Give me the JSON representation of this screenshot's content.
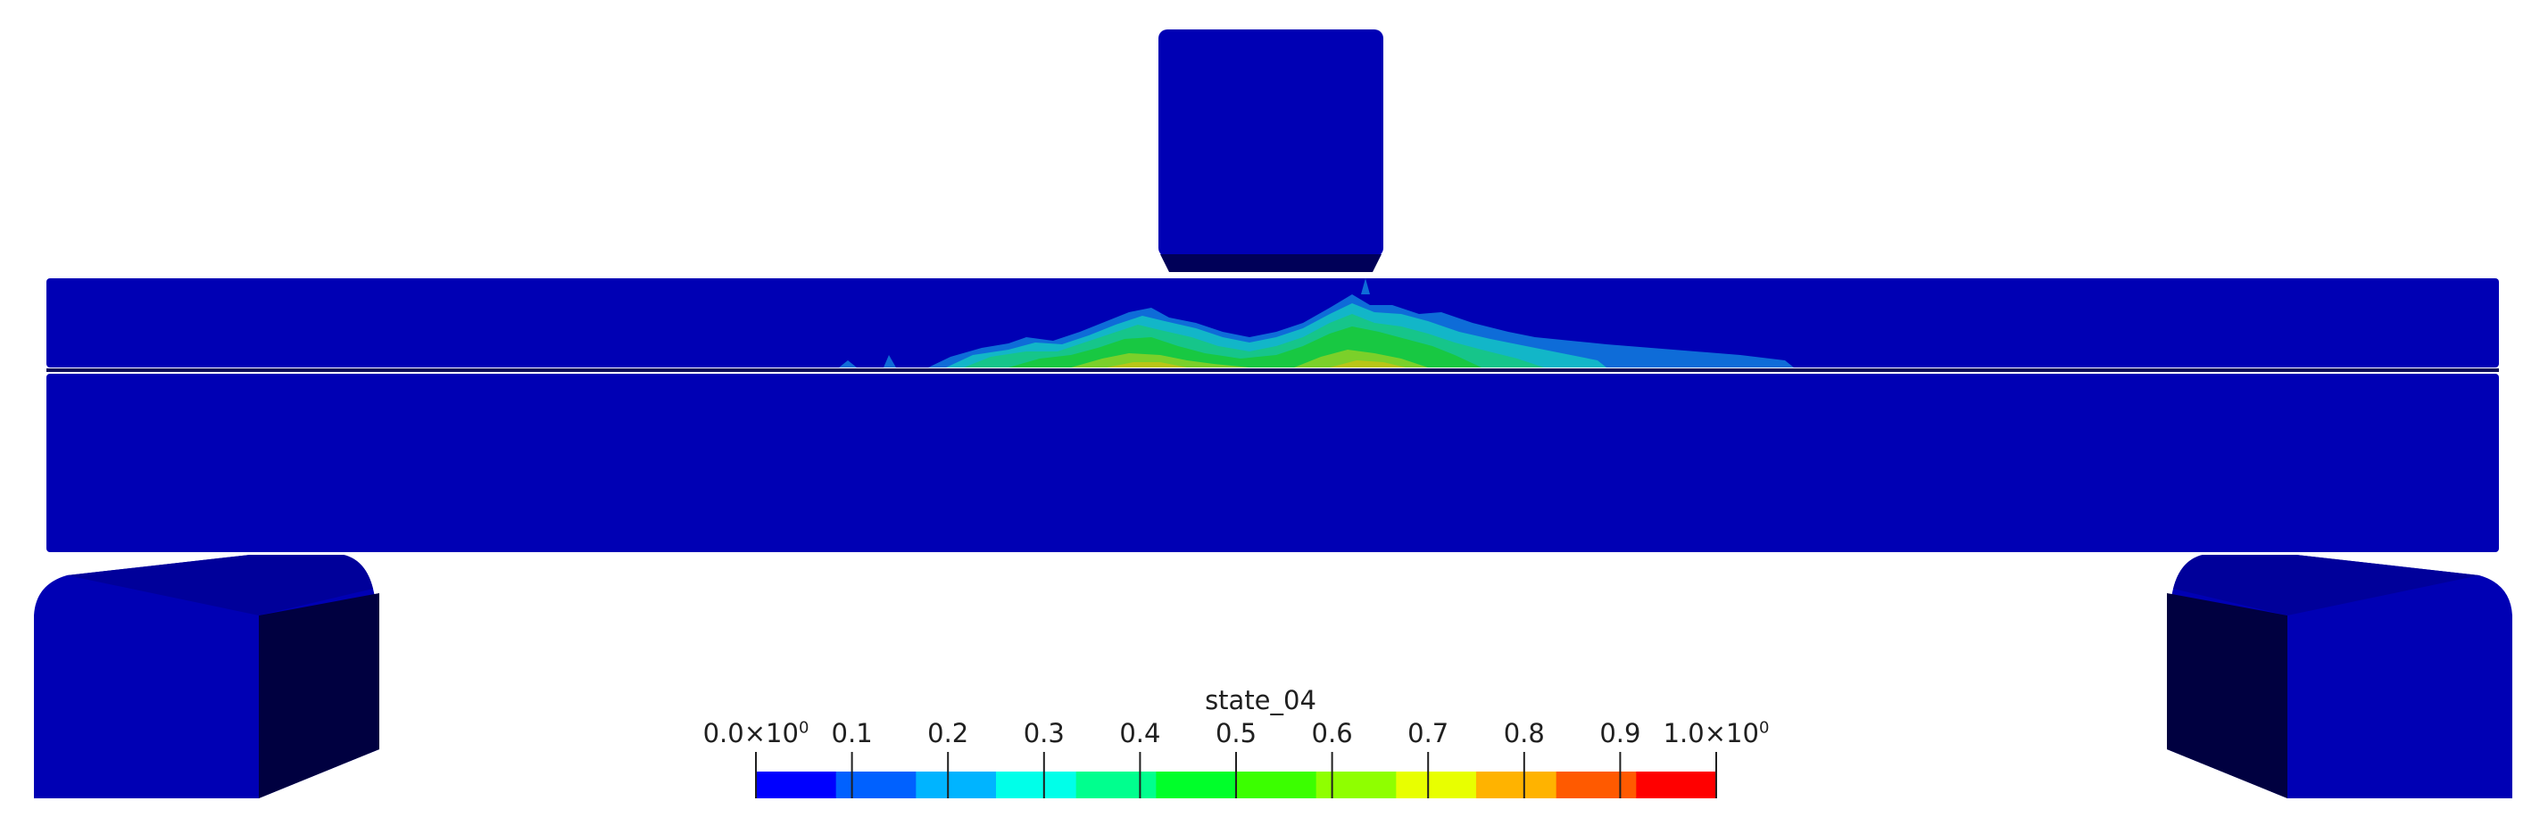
{
  "scene": {
    "field_colors": {
      "background": "#ffffff",
      "low": "#0000b4",
      "shadow": "#000040",
      "edge": "#0b0b5a",
      "contour_light_blue": "#0e6cd8",
      "contour_cyan": "#12b6c8",
      "contour_teal": "#16c58a",
      "contour_green": "#18c842",
      "contour_lime": "#7bd02a",
      "contour_yellow": "#b9c616"
    }
  },
  "legend": {
    "title": "state_04",
    "ticks": [
      {
        "label": "0.0×10",
        "sup": "0"
      },
      {
        "label": "0.1",
        "sup": ""
      },
      {
        "label": "0.2",
        "sup": ""
      },
      {
        "label": "0.3",
        "sup": ""
      },
      {
        "label": "0.4",
        "sup": ""
      },
      {
        "label": "0.5",
        "sup": ""
      },
      {
        "label": "0.6",
        "sup": ""
      },
      {
        "label": "0.7",
        "sup": ""
      },
      {
        "label": "0.8",
        "sup": ""
      },
      {
        "label": "0.9",
        "sup": ""
      },
      {
        "label": "1.0×10",
        "sup": "0"
      }
    ],
    "range": [
      0,
      1
    ],
    "colors": [
      "#0000ff",
      "#0061ff",
      "#00b4ff",
      "#00ffe9",
      "#00ff8e",
      "#00ff2a",
      "#3bff00",
      "#8fff00",
      "#e8ff00",
      "#ffb300",
      "#ff5a00",
      "#ff0000"
    ]
  }
}
